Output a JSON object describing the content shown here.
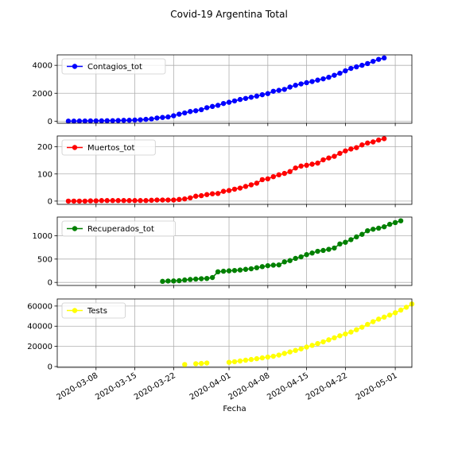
{
  "title": "Covid-19 Argentina Total",
  "xlabel": "Fecha",
  "x_ticks": [
    "2020-03-08",
    "2020-03-15",
    "2020-03-22",
    "2020-04-01",
    "2020-04-08",
    "2020-04-15",
    "2020-04-22",
    "2020-05-01"
  ],
  "chart_data": [
    {
      "type": "line",
      "title": "Covid-19 Argentina Total",
      "xlabel": "Fecha",
      "ylabel": "",
      "grid": true,
      "legend": "upper-left",
      "ylim": [
        -150,
        4750
      ],
      "yticks": [
        0,
        2000,
        4000
      ],
      "series": [
        {
          "name": "Contagios_tot",
          "color": "#0000ff",
          "start_date": "2020-03-03",
          "values": [
            1,
            2,
            8,
            12,
            17,
            19,
            21,
            31,
            34,
            45,
            56,
            65,
            79,
            97,
            128,
            158,
            225,
            266,
            301,
            387,
            502,
            589,
            690,
            745,
            820,
            966,
            1054,
            1133,
            1265,
            1353,
            1451,
            1554,
            1628,
            1715,
            1795,
            1894,
            1975,
            2142,
            2208,
            2277,
            2443,
            2571,
            2669,
            2758,
            2839,
            2941,
            3031,
            3144,
            3288,
            3435,
            3607,
            3780,
            3892,
            4003,
            4127,
            4285,
            4428,
            4532
          ]
        }
      ]
    },
    {
      "type": "line",
      "grid": true,
      "legend": "upper-left",
      "ylim": [
        -12,
        240
      ],
      "yticks": [
        0,
        100,
        200
      ],
      "series": [
        {
          "name": "Muertos_tot",
          "color": "#ff0000",
          "start_date": "2020-03-03",
          "values": [
            0,
            0,
            0,
            0,
            1,
            1,
            2,
            2,
            2,
            2,
            2,
            2,
            2,
            2,
            2,
            3,
            4,
            4,
            4,
            4,
            6,
            8,
            12,
            18,
            20,
            24,
            27,
            28,
            36,
            39,
            44,
            48,
            54,
            60,
            66,
            79,
            82,
            90,
            97,
            102,
            109,
            122,
            129,
            132,
            136,
            140,
            152,
            159,
            165,
            176,
            185,
            192,
            197,
            207,
            214,
            218,
            225,
            230
          ]
        }
      ]
    },
    {
      "type": "line",
      "grid": true,
      "legend": "upper-left",
      "ylim": [
        -65,
        1400
      ],
      "yticks": [
        0,
        500,
        1000
      ],
      "series": [
        {
          "name": "Recuperados_tot",
          "color": "#008000",
          "start_date": "2020-03-20",
          "values": [
            23,
            30,
            32,
            37,
            52,
            63,
            72,
            79,
            85,
            105,
            228,
            240,
            248,
            256,
            266,
            280,
            292,
            315,
            338,
            358,
            370,
            375,
            440,
            468,
            515,
            548,
            596,
            630,
            667,
            685,
            709,
            737,
            824,
            860,
            916,
            976,
            1030,
            1107,
            1140,
            1162,
            1192,
            1245,
            1282,
            1320
          ]
        }
      ]
    },
    {
      "type": "line",
      "grid": true,
      "legend": "upper-left",
      "ylim": [
        -800,
        67000
      ],
      "yticks": [
        0,
        20000,
        40000,
        60000
      ],
      "series": [
        {
          "name": "Tests",
          "color": "#ffff00",
          "start_date": "2020-03-20",
          "values": [
            null,
            null,
            null,
            null,
            2000,
            null,
            2800,
            3100,
            3500,
            null,
            null,
            null,
            4200,
            4800,
            5500,
            6300,
            7000,
            7800,
            8600,
            9400,
            10200,
            11400,
            13000,
            14500,
            16000,
            17500,
            19300,
            21000,
            22800,
            24500,
            26500,
            28500,
            30500,
            32300,
            34200,
            36500,
            39000,
            41800,
            44500,
            47000,
            49000,
            51000,
            53300,
            56000,
            58800,
            62000
          ]
        }
      ]
    }
  ]
}
